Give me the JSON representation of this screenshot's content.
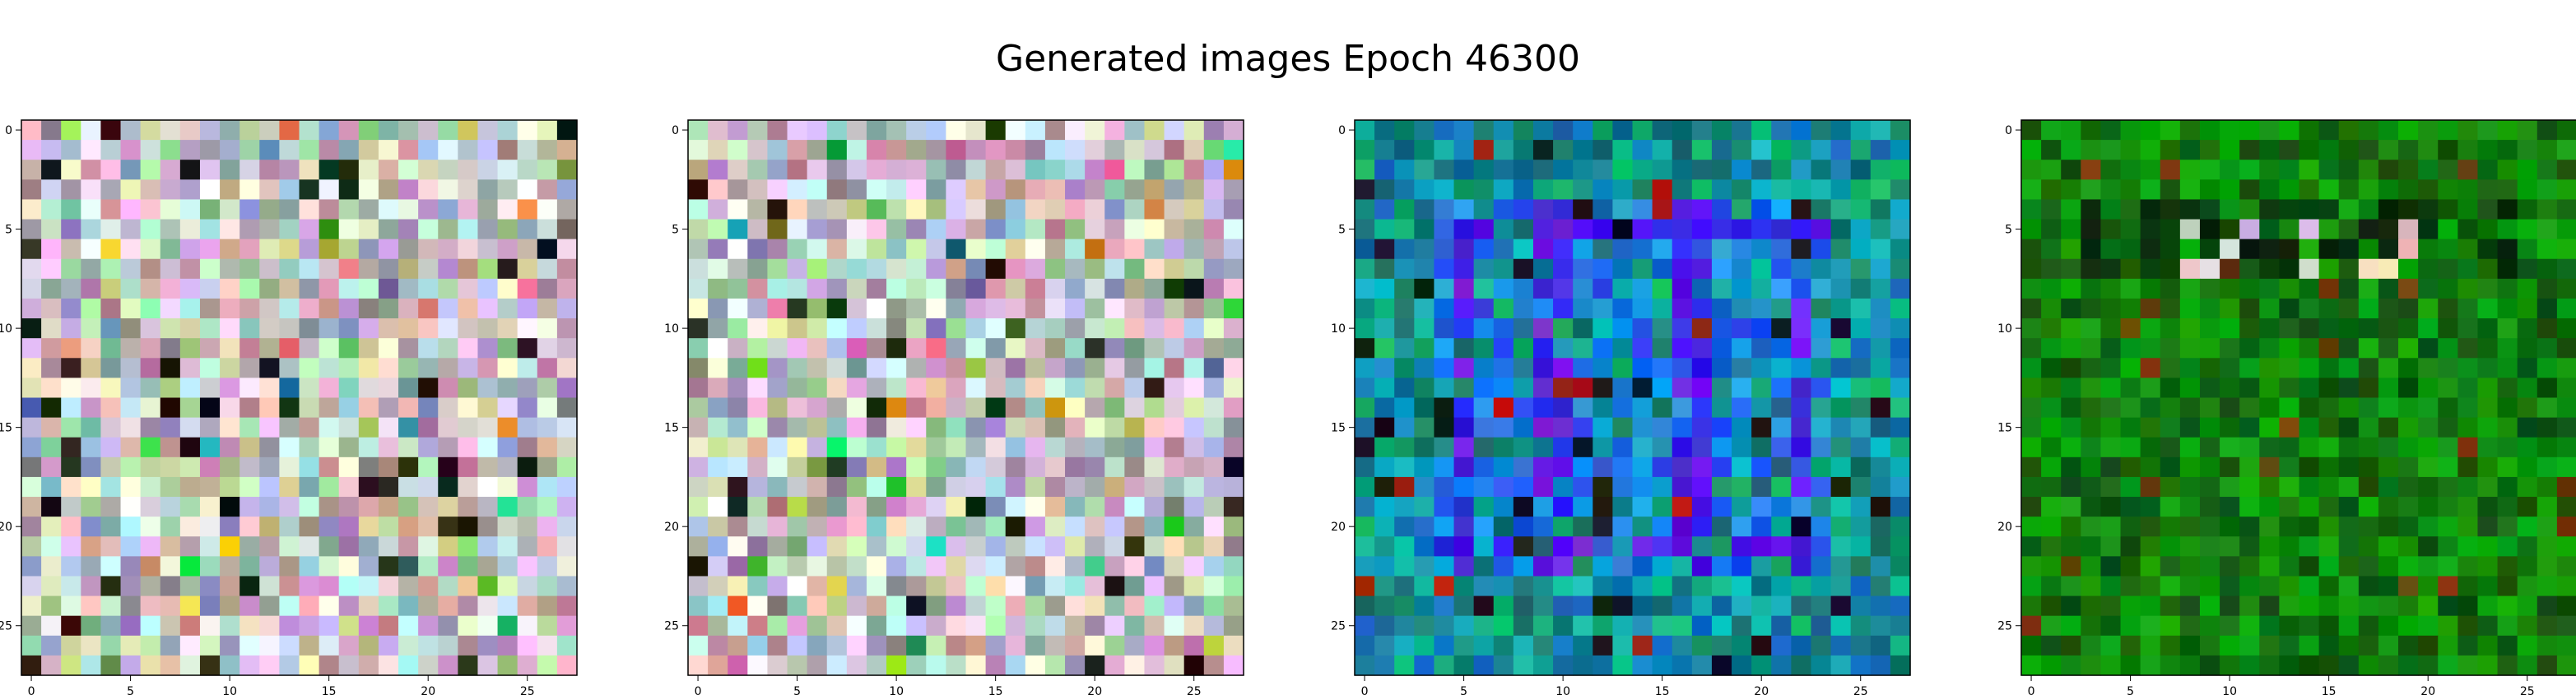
{
  "figure": {
    "title": "Generated images Epoch 46300"
  },
  "colors": {
    "frame": "#000000",
    "background": "#ffffff"
  },
  "chart_data": [
    {
      "type": "heatmap",
      "palette": "pastel-noise",
      "grid": [
        28,
        28
      ],
      "xlim": [
        0,
        27
      ],
      "ylim": [
        27,
        0
      ],
      "xticks": [
        0,
        5,
        10,
        15,
        20,
        25
      ],
      "yticks": [
        0,
        5,
        10,
        15,
        20,
        25
      ],
      "xtick_labels": [
        "0",
        "5",
        "10",
        "15",
        "20",
        "25"
      ],
      "ytick_labels": [
        "0",
        "5",
        "10",
        "15",
        "20",
        "25"
      ],
      "grid_lines": false,
      "title": "",
      "xlabel": "",
      "ylabel": ""
    },
    {
      "type": "heatmap",
      "palette": "pastel-noise",
      "grid": [
        28,
        28
      ],
      "xlim": [
        0,
        27
      ],
      "ylim": [
        27,
        0
      ],
      "xticks": [
        0,
        5,
        10,
        15,
        20,
        25
      ],
      "yticks": [
        0,
        5,
        10,
        15,
        20,
        25
      ],
      "xtick_labels": [
        "0",
        "5",
        "10",
        "15",
        "20",
        "25"
      ],
      "ytick_labels": [
        "0",
        "5",
        "10",
        "15",
        "20",
        "25"
      ],
      "grid_lines": false,
      "title": "",
      "xlabel": "",
      "ylabel": ""
    },
    {
      "type": "heatmap",
      "palette": "blue-cyan-teal",
      "grid": [
        28,
        28
      ],
      "xlim": [
        0,
        27
      ],
      "ylim": [
        27,
        0
      ],
      "xticks": [
        0,
        5,
        10,
        15,
        20,
        25
      ],
      "yticks": [
        0,
        5,
        10,
        15,
        20,
        25
      ],
      "xtick_labels": [
        "0",
        "5",
        "10",
        "15",
        "20",
        "25"
      ],
      "ytick_labels": [
        "0",
        "5",
        "10",
        "15",
        "20",
        "25"
      ],
      "grid_lines": false,
      "title": "",
      "xlabel": "",
      "ylabel": ""
    },
    {
      "type": "heatmap",
      "palette": "green-dark",
      "grid": [
        28,
        28
      ],
      "xlim": [
        0,
        27
      ],
      "ylim": [
        27,
        0
      ],
      "xticks": [
        0,
        5,
        10,
        15,
        20,
        25
      ],
      "yticks": [
        0,
        5,
        10,
        15,
        20,
        25
      ],
      "xtick_labels": [
        "0",
        "5",
        "10",
        "15",
        "20",
        "25"
      ],
      "ytick_labels": [
        "0",
        "5",
        "10",
        "15",
        "20",
        "25"
      ],
      "grid_lines": false,
      "title": "",
      "xlabel": "",
      "ylabel": ""
    }
  ]
}
